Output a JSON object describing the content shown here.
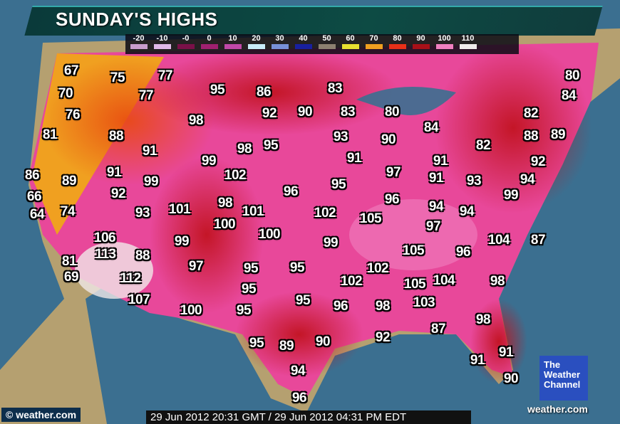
{
  "title": "SUNDAY'S HIGHS",
  "legend": [
    {
      "label": "-20",
      "color": "#c89ccc"
    },
    {
      "label": "-10",
      "color": "#e0b8e8"
    },
    {
      "label": "-0",
      "color": "#7a1048"
    },
    {
      "label": "0",
      "color": "#a02070"
    },
    {
      "label": "10",
      "color": "#c048a8"
    },
    {
      "label": "20",
      "color": "#c8ecf8"
    },
    {
      "label": "30",
      "color": "#7890d8"
    },
    {
      "label": "40",
      "color": "#1820a0"
    },
    {
      "label": "50",
      "color": "#8c8070"
    },
    {
      "label": "60",
      "color": "#e8e030"
    },
    {
      "label": "70",
      "color": "#f0a020"
    },
    {
      "label": "80",
      "color": "#e83018"
    },
    {
      "label": "90",
      "color": "#a81018"
    },
    {
      "label": "100",
      "color": "#f080c0"
    },
    {
      "label": "110",
      "color": "#f0ecec"
    }
  ],
  "temperatures": [
    "67",
    "75",
    "77",
    "70",
    "77",
    "95",
    "86",
    "83",
    "80",
    "84",
    "76",
    "98",
    "92",
    "90",
    "83",
    "80",
    "84",
    "82",
    "81",
    "88",
    "93",
    "90",
    "88",
    "89",
    "91",
    "98",
    "95",
    "82",
    "91",
    "91",
    "92",
    "99",
    "86",
    "89",
    "91",
    "99",
    "102",
    "97",
    "91",
    "93",
    "94",
    "96",
    "95",
    "92",
    "66",
    "99",
    "96",
    "64",
    "74",
    "93",
    "101",
    "98",
    "101",
    "102",
    "105",
    "94",
    "94",
    "100",
    "97",
    "106",
    "100",
    "99",
    "99",
    "104",
    "87",
    "113",
    "88",
    "105",
    "96",
    "81",
    "95",
    "95",
    "102",
    "97",
    "69",
    "112",
    "102",
    "105",
    "104",
    "98",
    "95",
    "107",
    "95",
    "96",
    "98",
    "103",
    "100",
    "95",
    "98",
    "87",
    "92",
    "95",
    "89",
    "90",
    "91",
    "91",
    "94",
    "90",
    "96"
  ],
  "copyright": "© weather.com",
  "timestamp": "29 Jun 2012 20:31 GMT / 29 Jun 2012 04:31 PM EDT",
  "logo": {
    "line1": "The",
    "line2": "Weather",
    "line3": "Channel"
  },
  "site": "weather.com"
}
